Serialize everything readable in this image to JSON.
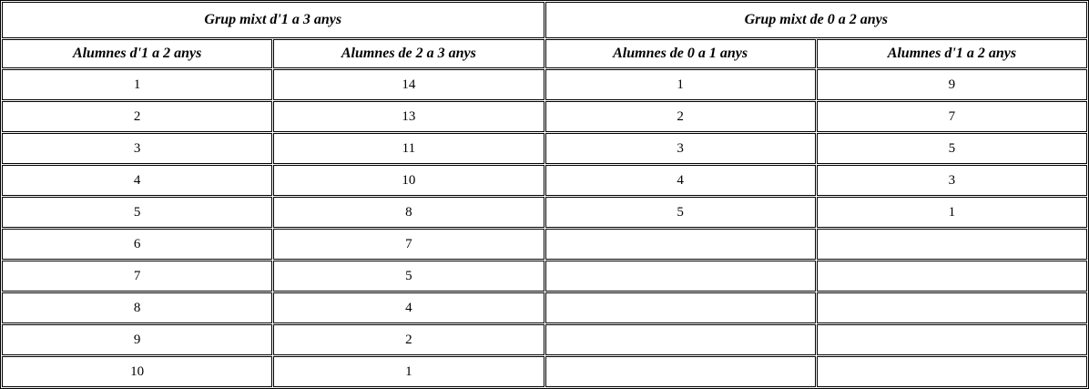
{
  "table": {
    "groups": [
      {
        "title": "Grup mixt d'1 a 3 anys",
        "columns": [
          "Alumnes d'1 a 2 anys",
          "Alumnes de 2 a 3 anys"
        ]
      },
      {
        "title": "Grup mixt de 0 a 2 anys",
        "columns": [
          "Alumnes de 0 a 1 anys",
          "Alumnes d'1 a 2 anys"
        ]
      }
    ],
    "rows": [
      [
        "1",
        "14",
        "1",
        "9"
      ],
      [
        "2",
        "13",
        "2",
        "7"
      ],
      [
        "3",
        "11",
        "3",
        "5"
      ],
      [
        "4",
        "10",
        "4",
        "3"
      ],
      [
        "5",
        "8",
        "5",
        "1"
      ],
      [
        "6",
        "7",
        "",
        ""
      ],
      [
        "7",
        "5",
        "",
        ""
      ],
      [
        "8",
        "4",
        "",
        ""
      ],
      [
        "9",
        "2",
        "",
        ""
      ],
      [
        "10",
        "1",
        "",
        ""
      ]
    ],
    "colors": {
      "border": "#000000",
      "background": "#ffffff",
      "text": "#000000"
    }
  }
}
